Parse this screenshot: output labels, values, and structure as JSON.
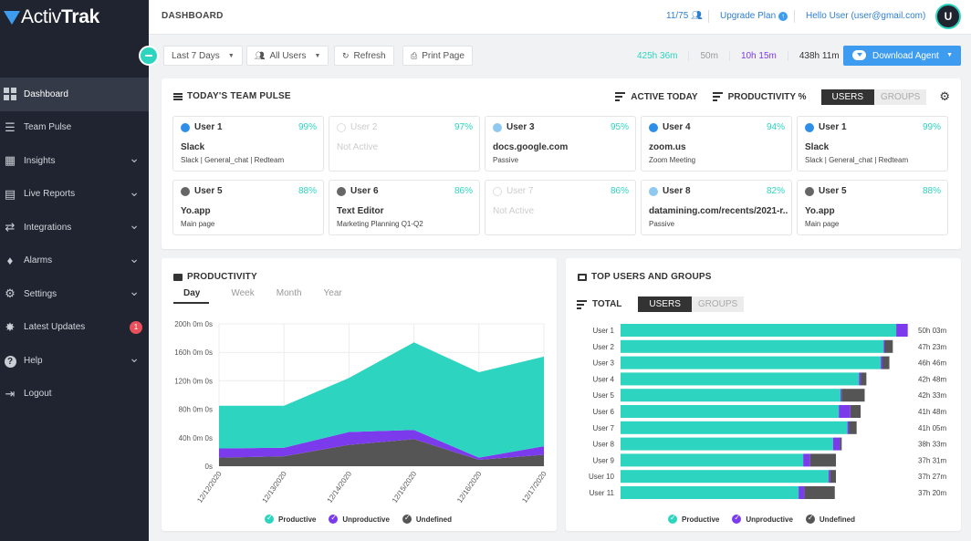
{
  "app": {
    "logo_prefix": "Activ",
    "logo_bold": "Trak"
  },
  "sidebar": {
    "items": [
      {
        "label": "Dashboard",
        "icon": "dashboard-icon",
        "active": true,
        "chevron": false
      },
      {
        "label": "Team Pulse",
        "icon": "team-pulse-icon",
        "active": false,
        "chevron": false
      },
      {
        "label": "Insights",
        "icon": "insights-icon",
        "active": false,
        "chevron": true
      },
      {
        "label": "Live Reports",
        "icon": "reports-icon",
        "active": false,
        "chevron": true
      },
      {
        "label": "Integrations",
        "icon": "integrations-icon",
        "active": false,
        "chevron": true
      },
      {
        "label": "Alarms",
        "icon": "bell-icon",
        "active": false,
        "chevron": true
      },
      {
        "label": "Settings",
        "icon": "gear-icon",
        "active": false,
        "chevron": true
      },
      {
        "label": "Latest Updates",
        "icon": "updates-icon",
        "active": false,
        "chevron": false,
        "badge": "1"
      },
      {
        "label": "Help",
        "icon": "help-icon",
        "active": false,
        "chevron": true
      },
      {
        "label": "Logout",
        "icon": "logout-icon",
        "active": false,
        "chevron": false
      }
    ]
  },
  "header": {
    "title": "DASHBOARD",
    "seats": "11/75",
    "upgrade": "Upgrade Plan",
    "hello": "Hello User  (user@gmail.com)",
    "avatar": "U"
  },
  "toolbar": {
    "range": "Last 7 Days",
    "users": "All Users",
    "refresh": "Refresh",
    "print": "Print Page",
    "times": [
      {
        "value": "425h 36m",
        "color": "#2dd4bf"
      },
      {
        "value": "50m",
        "color": "#999999"
      },
      {
        "value": "10h 15m",
        "color": "#7c3aed"
      },
      {
        "value": "438h 11m",
        "color": "#333333"
      }
    ],
    "download": "Download Agent"
  },
  "pulse": {
    "title": "TODAY'S TEAM PULSE",
    "sort_active": "ACTIVE TODAY",
    "sort_prod": "PRODUCTIVITY %",
    "toggle_on": "USERS",
    "toggle_off": "GROUPS",
    "cards": [
      {
        "user": "User 1",
        "pct": "99%",
        "app": "Slack",
        "sub": "Slack | General_chat | Redteam",
        "dot": "#2f8fe8",
        "active": true
      },
      {
        "user": "User 2",
        "pct": "97%",
        "app": "Not Active",
        "sub": "",
        "dot": "#ffffff",
        "active": false
      },
      {
        "user": "User 3",
        "pct": "95%",
        "app": "docs.google.com",
        "sub": "Passive",
        "dot": "#8fc9f0",
        "active": true
      },
      {
        "user": "User 4",
        "pct": "94%",
        "app": "zoom.us",
        "sub": "Zoom Meeting",
        "dot": "#2f8fe8",
        "active": true
      },
      {
        "user": "User 1",
        "pct": "99%",
        "app": "Slack",
        "sub": "Slack | General_chat | Redteam",
        "dot": "#2f8fe8",
        "active": true
      },
      {
        "user": "User 5",
        "pct": "88%",
        "app": "Yo.app",
        "sub": "Main page",
        "dot": "#666666",
        "active": true
      },
      {
        "user": "User 6",
        "pct": "86%",
        "app": "Text Editor",
        "sub": "Marketing Planning Q1-Q2",
        "dot": "#666666",
        "active": true
      },
      {
        "user": "User 7",
        "pct": "86%",
        "app": "Not Active",
        "sub": "",
        "dot": "#ffffff",
        "active": false
      },
      {
        "user": "User 8",
        "pct": "82%",
        "app": "datamining.com/recents/2021-r...",
        "sub": "Passive",
        "dot": "#8fc9f0",
        "active": true
      },
      {
        "user": "User 5",
        "pct": "88%",
        "app": "Yo.app",
        "sub": "Main page",
        "dot": "#666666",
        "active": true
      }
    ]
  },
  "productivity": {
    "title": "PRODUCTIVITY",
    "tabs": [
      "Day",
      "Week",
      "Month",
      "Year"
    ],
    "legend": [
      {
        "label": "Productive",
        "color": "#2dd4bf"
      },
      {
        "label": "Unproductive",
        "color": "#7c3aed"
      },
      {
        "label": "Undefined",
        "color": "#555555"
      }
    ]
  },
  "top_users": {
    "title": "TOP USERS AND GROUPS",
    "total": "TOTAL",
    "toggle_on": "USERS",
    "toggle_off": "GROUPS",
    "legend": [
      {
        "label": "Productive",
        "color": "#2dd4bf"
      },
      {
        "label": "Unproductive",
        "color": "#7c3aed"
      },
      {
        "label": "Undefined",
        "color": "#555555"
      }
    ]
  },
  "chart_data": [
    {
      "type": "area",
      "x": [
        "12/12/2020",
        "12/13/2020",
        "12/14/2020",
        "12/15/2020",
        "12/16/2020",
        "12/17/2020"
      ],
      "ylim": [
        0,
        200
      ],
      "yticks": [
        "0s",
        "40h 0m 0s",
        "80h 0m 0s",
        "120h 0m 0s",
        "160h 0m 0s",
        "200h 0m 0s"
      ],
      "series": [
        {
          "name": "Undefined",
          "color": "#555555",
          "values": [
            12,
            14,
            30,
            38,
            9,
            16
          ]
        },
        {
          "name": "Unproductive",
          "color": "#7c3aed",
          "values": [
            13,
            12,
            18,
            13,
            3,
            12
          ]
        },
        {
          "name": "Productive",
          "color": "#2dd4bf",
          "values": [
            60,
            59,
            76,
            123,
            120,
            126
          ]
        }
      ]
    },
    {
      "type": "bar",
      "orientation": "horizontal",
      "stacked": true,
      "categories": [
        "User 1",
        "User 2",
        "User 3",
        "User 4",
        "User 5",
        "User 6",
        "User 7",
        "User 8",
        "User 9",
        "User 10",
        "User 11"
      ],
      "totals": [
        "50h 03m",
        "47h 23m",
        "46h 46m",
        "42h 48m",
        "42h 33m",
        "41h 48m",
        "41h 05m",
        "38h 33m",
        "37h 31m",
        "37h 27m",
        "37h 20m"
      ],
      "series": [
        {
          "name": "Productive",
          "color": "#2dd4bf",
          "values": [
            48.0,
            45.8,
            45.3,
            41.5,
            38.3,
            38.0,
            39.5,
            37.0,
            31.8,
            36.2,
            31.0
          ]
        },
        {
          "name": "Unproductive",
          "color": "#7c3aed",
          "values": [
            2.0,
            0.2,
            0.3,
            0.3,
            0.2,
            2.0,
            0.3,
            1.2,
            1.2,
            0.3,
            1.0
          ]
        },
        {
          "name": "Undefined",
          "color": "#555555",
          "values": [
            0.0,
            1.4,
            1.2,
            1.0,
            4.0,
            1.8,
            1.3,
            0.3,
            4.5,
            1.0,
            5.3
          ]
        }
      ]
    }
  ]
}
